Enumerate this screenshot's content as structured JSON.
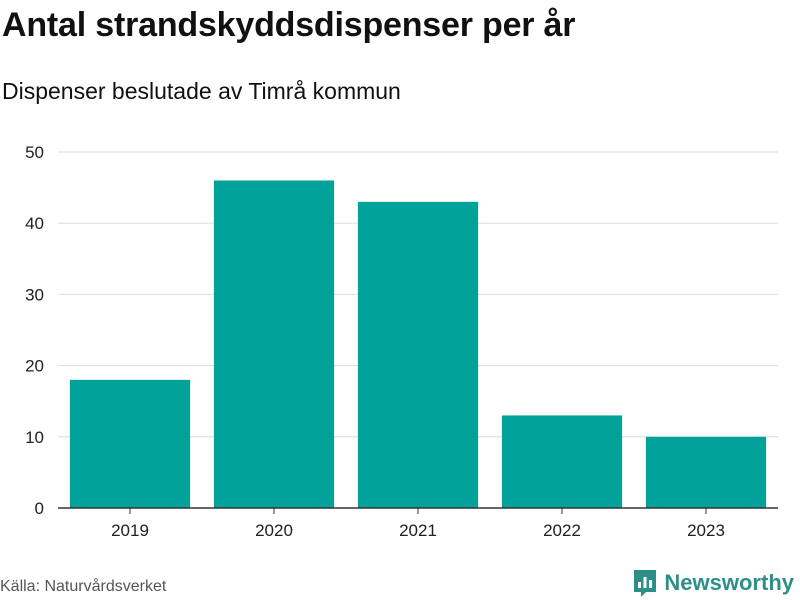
{
  "header": {
    "title": "Antal strandskyddsdispenser per år",
    "subtitle": "Dispenser beslutade av Timrå kommun"
  },
  "footer": {
    "source": "Källa: Naturvårdsverket",
    "brand": "Newsworthy",
    "brand_icon": "bar-chart-logo-icon"
  },
  "colors": {
    "bar": "#00a29a",
    "grid": "#dddddd",
    "axis": "#333333",
    "brand": "#2d8f87"
  },
  "chart_data": {
    "type": "bar",
    "title": "Antal strandskyddsdispenser per år",
    "subtitle": "Dispenser beslutade av Timrå kommun",
    "categories": [
      "2019",
      "2020",
      "2021",
      "2022",
      "2023"
    ],
    "values": [
      18,
      46,
      43,
      13,
      10
    ],
    "xlabel": "",
    "ylabel": "",
    "ylim": [
      0,
      50
    ],
    "yticks": [
      0,
      10,
      20,
      30,
      40,
      50
    ],
    "grid": true,
    "legend": "none"
  }
}
